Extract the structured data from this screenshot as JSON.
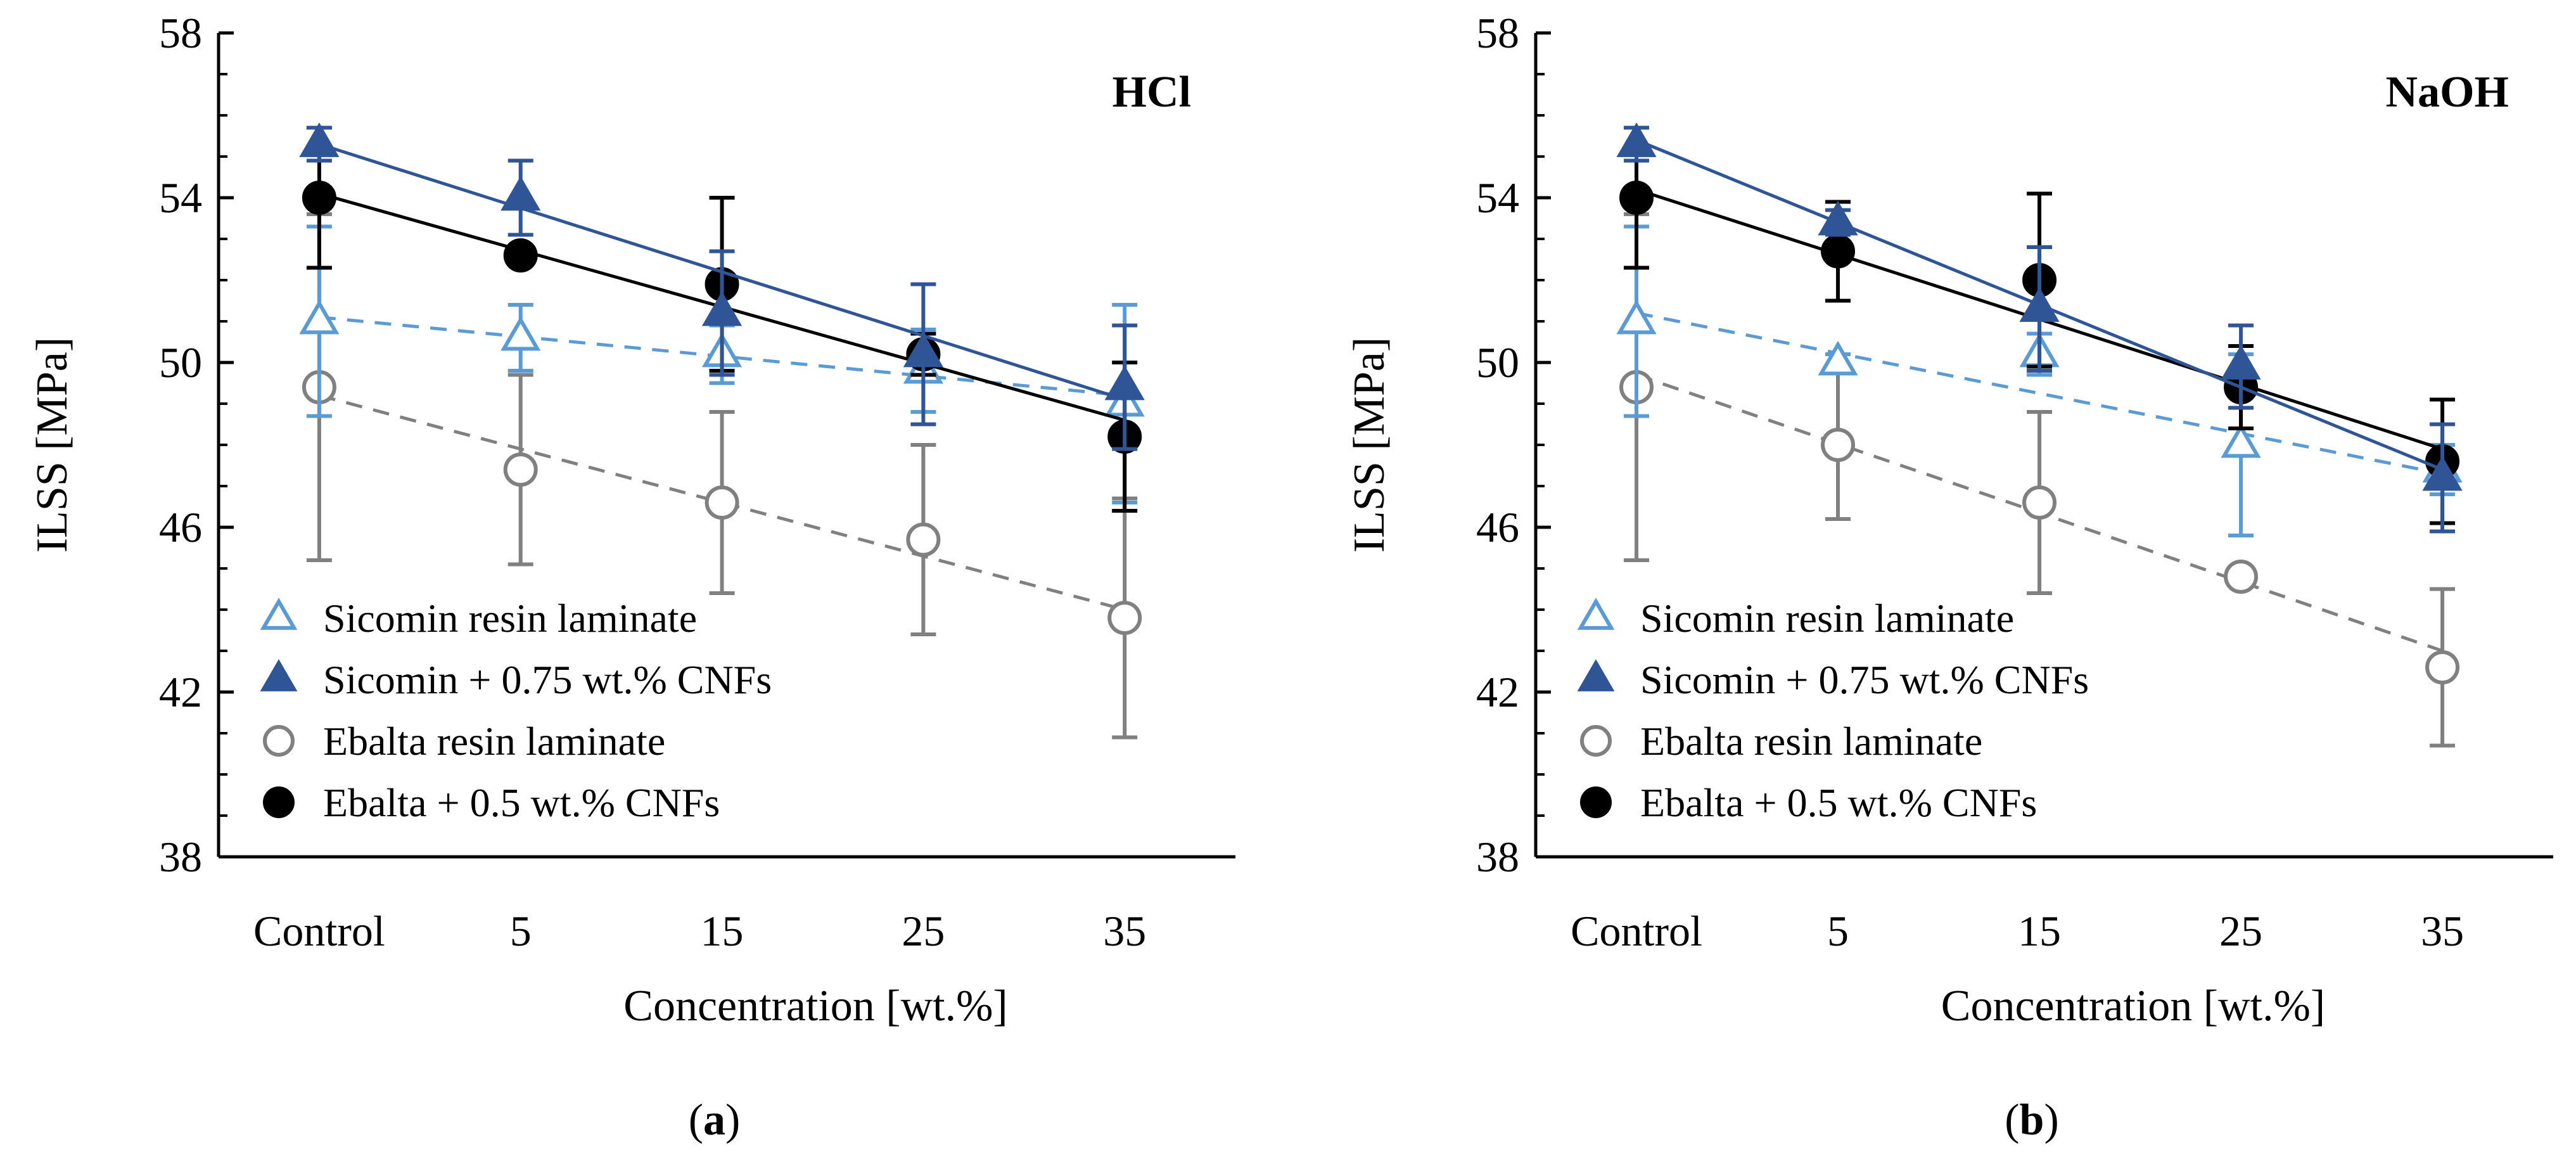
{
  "chart_data": [
    {
      "type": "scatter",
      "panel_tag": "HCl",
      "caption_letter": "a",
      "xlabel": "Concentration [wt.%]",
      "ylabel": "ILSS [MPa]",
      "ylim": [
        38,
        58
      ],
      "yticks": [
        "38",
        "42",
        "46",
        "50",
        "54",
        "58"
      ],
      "categories": [
        "Control",
        "5",
        "15",
        "25",
        "35"
      ],
      "legend_position": "bottom-left",
      "series": [
        {
          "name": "Sicomin resin laminate",
          "marker": "triangle-open",
          "color": "#5b9bd5",
          "trend": "dashed",
          "values": [
            51.0,
            50.6,
            50.2,
            49.8,
            49.0
          ],
          "errors": [
            2.3,
            0.8,
            0.7,
            1.0,
            2.4
          ],
          "trend_ends": [
            51.1,
            49.2
          ]
        },
        {
          "name": "Sicomin + 0.75 wt.% CNFs",
          "marker": "triangle-filled",
          "color": "#2f5597",
          "trend": "solid",
          "values": [
            55.3,
            54.0,
            51.2,
            50.2,
            49.4
          ],
          "errors": [
            0.4,
            0.9,
            1.5,
            1.7,
            1.5
          ],
          "trend_ends": [
            55.3,
            49.1
          ]
        },
        {
          "name": "Ebalta resin laminate",
          "marker": "circle-open",
          "color": "#808080",
          "trend": "dashed",
          "values": [
            49.4,
            47.4,
            46.6,
            45.7,
            43.8
          ],
          "errors": [
            4.2,
            2.3,
            2.2,
            2.3,
            2.9
          ],
          "trend_ends": [
            49.2,
            44.0
          ]
        },
        {
          "name": "Ebalta + 0.5 wt.% CNFs",
          "marker": "circle-filled",
          "color": "#000000",
          "trend": "solid",
          "values": [
            54.0,
            52.6,
            51.9,
            50.2,
            48.2
          ],
          "errors": [
            1.7,
            0.2,
            2.1,
            0.5,
            1.8
          ],
          "trend_ends": [
            54.1,
            48.6
          ]
        }
      ]
    },
    {
      "type": "scatter",
      "panel_tag": "NaOH",
      "caption_letter": "b",
      "xlabel": "Concentration [wt.%]",
      "ylabel": "ILSS [MPa]",
      "ylim": [
        38,
        58
      ],
      "yticks": [
        "38",
        "42",
        "46",
        "50",
        "54",
        "58"
      ],
      "categories": [
        "Control",
        "5",
        "15",
        "25",
        "35"
      ],
      "legend_position": "bottom-left",
      "series": [
        {
          "name": "Sicomin resin laminate",
          "marker": "triangle-open",
          "color": "#5b9bd5",
          "trend": "dashed",
          "values": [
            51.0,
            50.0,
            50.2,
            48.0,
            47.4
          ],
          "errors": [
            2.3,
            0.2,
            0.5,
            2.2,
            0.6
          ],
          "trend_ends": [
            51.2,
            47.3
          ]
        },
        {
          "name": "Sicomin + 0.75 wt.% CNFs",
          "marker": "triangle-filled",
          "color": "#2f5597",
          "trend": "solid",
          "values": [
            55.3,
            53.4,
            51.3,
            49.9,
            47.2
          ],
          "errors": [
            0.4,
            0.3,
            1.5,
            1.0,
            1.3
          ],
          "trend_ends": [
            55.4,
            47.4
          ]
        },
        {
          "name": "Ebalta resin laminate",
          "marker": "circle-open",
          "color": "#808080",
          "trend": "dashed",
          "values": [
            49.4,
            48.0,
            46.6,
            44.8,
            42.6
          ],
          "errors": [
            4.2,
            1.8,
            2.2,
            0.2,
            1.9
          ],
          "trend_ends": [
            49.7,
            43.0
          ]
        },
        {
          "name": "Ebalta + 0.5 wt.% CNFs",
          "marker": "circle-filled",
          "color": "#000000",
          "trend": "solid",
          "values": [
            54.0,
            52.7,
            52.0,
            49.4,
            47.6
          ],
          "errors": [
            1.7,
            1.2,
            2.1,
            1.0,
            1.5
          ],
          "trend_ends": [
            54.2,
            47.9
          ]
        }
      ]
    }
  ]
}
